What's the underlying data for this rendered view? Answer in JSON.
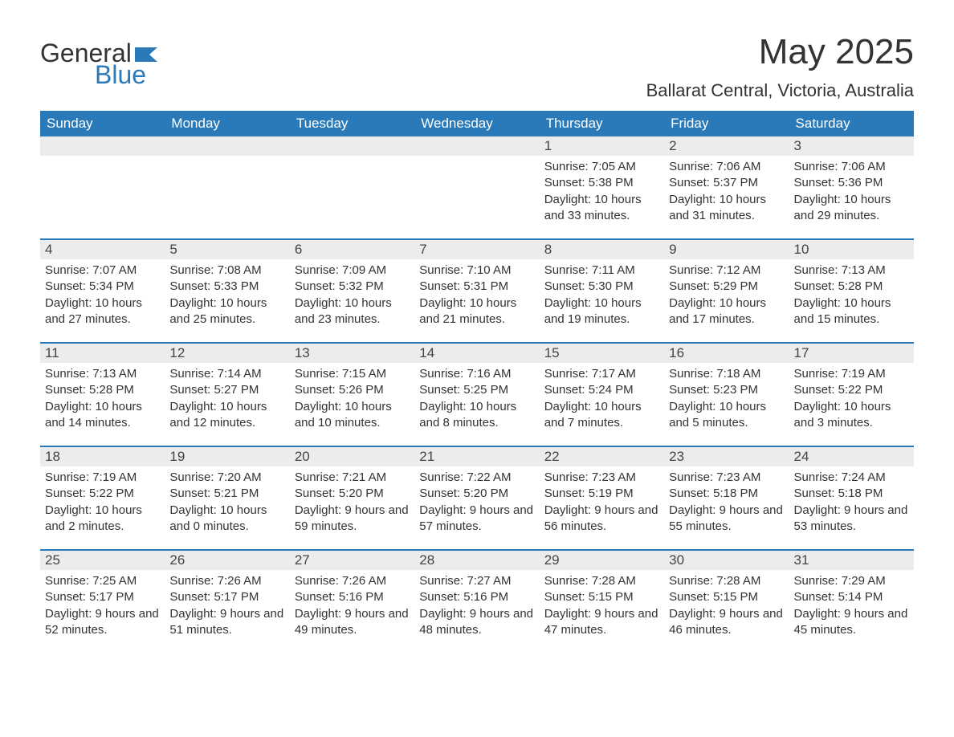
{
  "logo": {
    "text1": "General",
    "text2": "Blue",
    "flag_color": "#2a7ab9"
  },
  "title": "May 2025",
  "location": "Ballarat Central, Victoria, Australia",
  "colors": {
    "header_bg": "#2a7ab9",
    "header_text": "#ffffff",
    "daynum_bg": "#ececec",
    "row_divider": "#2a7ab9",
    "body_text": "#333333",
    "background": "#ffffff"
  },
  "typography": {
    "title_fontsize": 44,
    "location_fontsize": 22,
    "header_fontsize": 17,
    "daynum_fontsize": 17,
    "body_fontsize": 15,
    "font_family": "Arial"
  },
  "weekdays": [
    "Sunday",
    "Monday",
    "Tuesday",
    "Wednesday",
    "Thursday",
    "Friday",
    "Saturday"
  ],
  "weeks": [
    [
      {
        "blank": true
      },
      {
        "blank": true
      },
      {
        "blank": true
      },
      {
        "blank": true
      },
      {
        "day": "1",
        "sunrise": "7:05 AM",
        "sunset": "5:38 PM",
        "daylight": "10 hours and 33 minutes."
      },
      {
        "day": "2",
        "sunrise": "7:06 AM",
        "sunset": "5:37 PM",
        "daylight": "10 hours and 31 minutes."
      },
      {
        "day": "3",
        "sunrise": "7:06 AM",
        "sunset": "5:36 PM",
        "daylight": "10 hours and 29 minutes."
      }
    ],
    [
      {
        "day": "4",
        "sunrise": "7:07 AM",
        "sunset": "5:34 PM",
        "daylight": "10 hours and 27 minutes."
      },
      {
        "day": "5",
        "sunrise": "7:08 AM",
        "sunset": "5:33 PM",
        "daylight": "10 hours and 25 minutes."
      },
      {
        "day": "6",
        "sunrise": "7:09 AM",
        "sunset": "5:32 PM",
        "daylight": "10 hours and 23 minutes."
      },
      {
        "day": "7",
        "sunrise": "7:10 AM",
        "sunset": "5:31 PM",
        "daylight": "10 hours and 21 minutes."
      },
      {
        "day": "8",
        "sunrise": "7:11 AM",
        "sunset": "5:30 PM",
        "daylight": "10 hours and 19 minutes."
      },
      {
        "day": "9",
        "sunrise": "7:12 AM",
        "sunset": "5:29 PM",
        "daylight": "10 hours and 17 minutes."
      },
      {
        "day": "10",
        "sunrise": "7:13 AM",
        "sunset": "5:28 PM",
        "daylight": "10 hours and 15 minutes."
      }
    ],
    [
      {
        "day": "11",
        "sunrise": "7:13 AM",
        "sunset": "5:28 PM",
        "daylight": "10 hours and 14 minutes."
      },
      {
        "day": "12",
        "sunrise": "7:14 AM",
        "sunset": "5:27 PM",
        "daylight": "10 hours and 12 minutes."
      },
      {
        "day": "13",
        "sunrise": "7:15 AM",
        "sunset": "5:26 PM",
        "daylight": "10 hours and 10 minutes."
      },
      {
        "day": "14",
        "sunrise": "7:16 AM",
        "sunset": "5:25 PM",
        "daylight": "10 hours and 8 minutes."
      },
      {
        "day": "15",
        "sunrise": "7:17 AM",
        "sunset": "5:24 PM",
        "daylight": "10 hours and 7 minutes."
      },
      {
        "day": "16",
        "sunrise": "7:18 AM",
        "sunset": "5:23 PM",
        "daylight": "10 hours and 5 minutes."
      },
      {
        "day": "17",
        "sunrise": "7:19 AM",
        "sunset": "5:22 PM",
        "daylight": "10 hours and 3 minutes."
      }
    ],
    [
      {
        "day": "18",
        "sunrise": "7:19 AM",
        "sunset": "5:22 PM",
        "daylight": "10 hours and 2 minutes."
      },
      {
        "day": "19",
        "sunrise": "7:20 AM",
        "sunset": "5:21 PM",
        "daylight": "10 hours and 0 minutes."
      },
      {
        "day": "20",
        "sunrise": "7:21 AM",
        "sunset": "5:20 PM",
        "daylight": "9 hours and 59 minutes."
      },
      {
        "day": "21",
        "sunrise": "7:22 AM",
        "sunset": "5:20 PM",
        "daylight": "9 hours and 57 minutes."
      },
      {
        "day": "22",
        "sunrise": "7:23 AM",
        "sunset": "5:19 PM",
        "daylight": "9 hours and 56 minutes."
      },
      {
        "day": "23",
        "sunrise": "7:23 AM",
        "sunset": "5:18 PM",
        "daylight": "9 hours and 55 minutes."
      },
      {
        "day": "24",
        "sunrise": "7:24 AM",
        "sunset": "5:18 PM",
        "daylight": "9 hours and 53 minutes."
      }
    ],
    [
      {
        "day": "25",
        "sunrise": "7:25 AM",
        "sunset": "5:17 PM",
        "daylight": "9 hours and 52 minutes."
      },
      {
        "day": "26",
        "sunrise": "7:26 AM",
        "sunset": "5:17 PM",
        "daylight": "9 hours and 51 minutes."
      },
      {
        "day": "27",
        "sunrise": "7:26 AM",
        "sunset": "5:16 PM",
        "daylight": "9 hours and 49 minutes."
      },
      {
        "day": "28",
        "sunrise": "7:27 AM",
        "sunset": "5:16 PM",
        "daylight": "9 hours and 48 minutes."
      },
      {
        "day": "29",
        "sunrise": "7:28 AM",
        "sunset": "5:15 PM",
        "daylight": "9 hours and 47 minutes."
      },
      {
        "day": "30",
        "sunrise": "7:28 AM",
        "sunset": "5:15 PM",
        "daylight": "9 hours and 46 minutes."
      },
      {
        "day": "31",
        "sunrise": "7:29 AM",
        "sunset": "5:14 PM",
        "daylight": "9 hours and 45 minutes."
      }
    ]
  ],
  "labels": {
    "sunrise": "Sunrise:",
    "sunset": "Sunset:",
    "daylight": "Daylight:"
  }
}
